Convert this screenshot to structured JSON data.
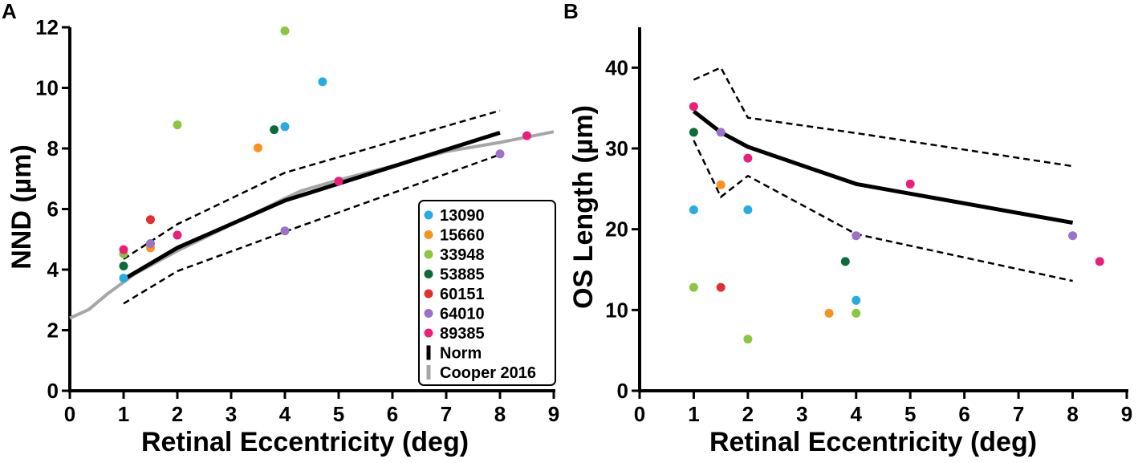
{
  "chart_data": [
    {
      "type": "scatter",
      "panel_label": "A",
      "xlabel": "Retinal Eccentricity (deg)",
      "ylabel": "NND (µm)",
      "xlim": [
        0,
        9
      ],
      "ylim": [
        0,
        12
      ],
      "xticks": [
        "0",
        "1",
        "2",
        "3",
        "4",
        "5",
        "6",
        "7",
        "8",
        "9"
      ],
      "yticks": [
        "0",
        "2",
        "4",
        "6",
        "8",
        "10",
        "12"
      ],
      "series": [
        {
          "name": "13090",
          "color": "#29abe2",
          "points": [
            [
              1,
              3.72
            ],
            [
              4,
              8.72
            ],
            [
              4.7,
              10.2
            ]
          ]
        },
        {
          "name": "15660",
          "color": "#f7931e",
          "points": [
            [
              1.5,
              4.72
            ],
            [
              3.5,
              8.02
            ]
          ]
        },
        {
          "name": "33948",
          "color": "#8cc63f",
          "points": [
            [
              1,
              4.52
            ],
            [
              2,
              8.78
            ],
            [
              4,
              11.88
            ]
          ]
        },
        {
          "name": "53885",
          "color": "#0b6b3a",
          "points": [
            [
              1,
              4.12
            ],
            [
              3.8,
              8.62
            ]
          ]
        },
        {
          "name": "60151",
          "color": "#e0312f",
          "points": [
            [
              1.5,
              5.65
            ]
          ]
        },
        {
          "name": "64010",
          "color": "#9b72c7",
          "points": [
            [
              1.5,
              4.86
            ],
            [
              4,
              5.28
            ],
            [
              8,
              7.82
            ]
          ]
        },
        {
          "name": "89385",
          "color": "#ec1e79",
          "points": [
            [
              1,
              4.66
            ],
            [
              2,
              5.14
            ],
            [
              5,
              6.92
            ],
            [
              8.5,
              8.42
            ]
          ]
        }
      ],
      "norm_line": [
        [
          1,
          3.68
        ],
        [
          2,
          4.72
        ],
        [
          4,
          6.28
        ],
        [
          8,
          8.52
        ]
      ],
      "norm_upper": [
        [
          1,
          4.35
        ],
        [
          2,
          5.5
        ],
        [
          4,
          7.2
        ],
        [
          8,
          9.25
        ]
      ],
      "norm_lower": [
        [
          1,
          2.88
        ],
        [
          2,
          3.95
        ],
        [
          4,
          5.25
        ],
        [
          8,
          7.8
        ]
      ],
      "cooper_line": [
        [
          0,
          2.4
        ],
        [
          0.35,
          2.68
        ],
        [
          0.7,
          3.2
        ],
        [
          1.2,
          3.85
        ],
        [
          2,
          4.62
        ],
        [
          3,
          5.48
        ],
        [
          4,
          6.35
        ],
        [
          4.3,
          6.6
        ],
        [
          5,
          6.96
        ],
        [
          6,
          7.42
        ],
        [
          7,
          7.9
        ],
        [
          8,
          8.2
        ],
        [
          9,
          8.55
        ]
      ],
      "legend": {
        "placement": "bottom-right",
        "entries": [
          {
            "label": "13090",
            "color": "#29abe2",
            "marker": "dot"
          },
          {
            "label": "15660",
            "color": "#f7931e",
            "marker": "dot"
          },
          {
            "label": "33948",
            "color": "#8cc63f",
            "marker": "dot"
          },
          {
            "label": "53885",
            "color": "#0b6b3a",
            "marker": "dot"
          },
          {
            "label": "60151",
            "color": "#e0312f",
            "marker": "dot"
          },
          {
            "label": "64010",
            "color": "#9b72c7",
            "marker": "dot"
          },
          {
            "label": "89385",
            "color": "#ec1e79",
            "marker": "dot"
          },
          {
            "label": "Norm",
            "color": "#000000",
            "marker": "bar"
          },
          {
            "label": "Cooper 2016",
            "color": "#a6a6a6",
            "marker": "bar"
          }
        ]
      }
    },
    {
      "type": "scatter",
      "panel_label": "B",
      "xlabel": "Retinal Eccentricity (deg)",
      "ylabel": "OS Length (µm)",
      "xlim": [
        0,
        9
      ],
      "ylim": [
        0,
        45
      ],
      "xticks": [
        "0",
        "1",
        "2",
        "3",
        "4",
        "5",
        "6",
        "7",
        "8",
        "9"
      ],
      "yticks": [
        "0",
        "10",
        "20",
        "30",
        "40"
      ],
      "series": [
        {
          "name": "13090",
          "color": "#29abe2",
          "points": [
            [
              1,
              22.4
            ],
            [
              2,
              22.4
            ],
            [
              4,
              11.2
            ]
          ]
        },
        {
          "name": "15660",
          "color": "#f7931e",
          "points": [
            [
              1.5,
              25.5
            ],
            [
              3.5,
              9.6
            ]
          ]
        },
        {
          "name": "33948",
          "color": "#8cc63f",
          "points": [
            [
              1,
              12.8
            ],
            [
              2,
              6.4
            ],
            [
              4,
              9.6
            ]
          ]
        },
        {
          "name": "53885",
          "color": "#0b6b3a",
          "points": [
            [
              1,
              32
            ],
            [
              3.8,
              16
            ]
          ]
        },
        {
          "name": "60151",
          "color": "#e0312f",
          "points": [
            [
              1.5,
              12.8
            ]
          ]
        },
        {
          "name": "64010",
          "color": "#9b72c7",
          "points": [
            [
              1.5,
              32
            ],
            [
              4,
              19.2
            ],
            [
              8,
              19.2
            ]
          ]
        },
        {
          "name": "89385",
          "color": "#ec1e79",
          "points": [
            [
              1,
              35.2
            ],
            [
              2,
              28.8
            ],
            [
              5,
              25.6
            ],
            [
              8.5,
              16
            ]
          ]
        }
      ],
      "norm_line": [
        [
          1,
          34.6
        ],
        [
          1.5,
          32
        ],
        [
          2,
          30.2
        ],
        [
          4,
          25.6
        ],
        [
          8,
          20.8
        ]
      ],
      "norm_upper": [
        [
          1,
          38.5
        ],
        [
          1.5,
          40
        ],
        [
          2,
          33.8
        ],
        [
          4,
          31.9
        ],
        [
          8,
          27.8
        ]
      ],
      "norm_lower": [
        [
          1,
          31
        ],
        [
          1.5,
          24
        ],
        [
          2,
          26.6
        ],
        [
          4,
          19.4
        ],
        [
          8,
          13.6
        ]
      ]
    }
  ]
}
